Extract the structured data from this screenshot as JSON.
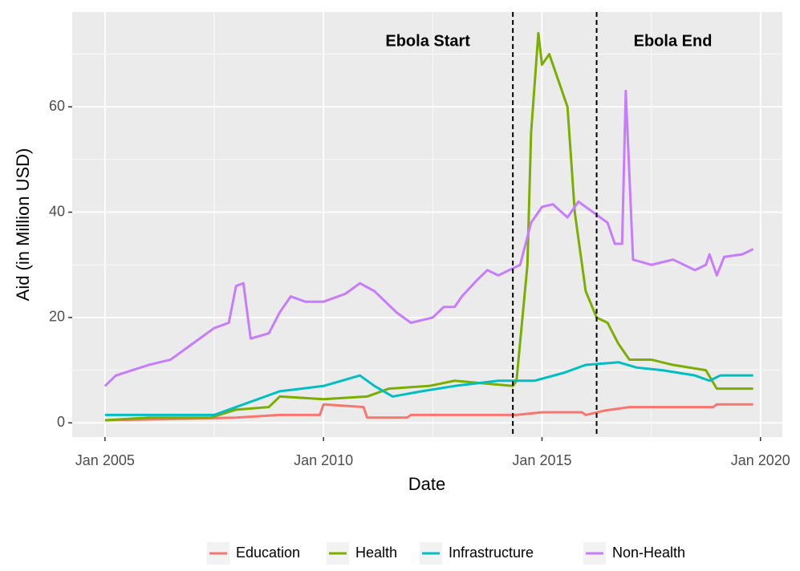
{
  "chart_data": {
    "type": "line",
    "x_label": "Date",
    "y_label": "Aid (in Million USD)",
    "xlim": [
      "2004-04",
      "2020-07"
    ],
    "xticks": [
      {
        "value": "2005-01",
        "label": "Jan 2005"
      },
      {
        "value": "2010-01",
        "label": "Jan 2010"
      },
      {
        "value": "2015-01",
        "label": "Jan 2015"
      },
      {
        "value": "2020-01",
        "label": "Jan 2020"
      }
    ],
    "ylim": [
      -2.7,
      78
    ],
    "yticks": [
      0,
      20,
      40,
      60
    ],
    "grid": true,
    "legend": "bottom",
    "annotations": [
      {
        "x": "2014-05",
        "label": "Ebola Start"
      },
      {
        "x": "2016-04",
        "label": "Ebola End"
      }
    ],
    "series": [
      {
        "name": "Education",
        "color": "#F8766D",
        "x": [
          "2005-01",
          "2007-01",
          "2008-01",
          "2009-01",
          "2009-12",
          "2010-01",
          "2010-12",
          "2011-01",
          "2011-12",
          "2012-01",
          "2014-06",
          "2015-01",
          "2015-12",
          "2016-01",
          "2016-06",
          "2017-01",
          "2018-12",
          "2019-01",
          "2019-11"
        ],
        "values": [
          0.5,
          0.8,
          1,
          1.5,
          1.5,
          3.5,
          3,
          1,
          1,
          1.5,
          1.5,
          2,
          2,
          1.5,
          2.3,
          3,
          3,
          3.5,
          3.5
        ]
      },
      {
        "name": "Health",
        "color": "#7CAE00",
        "x": [
          "2005-01",
          "2006-01",
          "2007-06",
          "2008-01",
          "2008-10",
          "2009-01",
          "2010-01",
          "2011-01",
          "2011-07",
          "2012-06",
          "2013-01",
          "2014-05",
          "2014-06",
          "2014-09",
          "2014-10",
          "2014-12",
          "2015-01",
          "2015-03",
          "2015-08",
          "2015-10",
          "2016-01",
          "2016-04",
          "2016-07",
          "2016-10",
          "2017-01",
          "2017-07",
          "2018-01",
          "2018-10",
          "2019-01",
          "2019-11"
        ],
        "values": [
          0.5,
          1,
          1,
          2.5,
          3,
          5,
          4.5,
          5,
          6.5,
          7,
          8,
          7,
          8,
          30,
          55,
          74,
          68,
          70,
          60,
          40,
          25,
          20,
          19,
          15,
          12,
          12,
          11,
          10,
          6.5,
          6.5
        ]
      },
      {
        "name": "Infrastructure",
        "color": "#00BFC4",
        "x": [
          "2005-01",
          "2007-07",
          "2008-01",
          "2009-01",
          "2010-01",
          "2010-11",
          "2011-03",
          "2011-08",
          "2012-04",
          "2013-01",
          "2014-01",
          "2014-11",
          "2015-07",
          "2016-01",
          "2016-10",
          "2017-03",
          "2017-10",
          "2018-07",
          "2018-11",
          "2019-02",
          "2019-11"
        ],
        "values": [
          1.5,
          1.5,
          3,
          6,
          7,
          9,
          7,
          5,
          6,
          7,
          8,
          8,
          9.5,
          11,
          11.5,
          10.5,
          10,
          9,
          8,
          9,
          9
        ]
      },
      {
        "name": "Non-Health",
        "color": "#C77CFF",
        "x": [
          "2005-01",
          "2005-04",
          "2006-01",
          "2006-07",
          "2007-01",
          "2007-07",
          "2007-11",
          "2008-01",
          "2008-03",
          "2008-05",
          "2008-10",
          "2009-01",
          "2009-04",
          "2009-08",
          "2010-01",
          "2010-07",
          "2010-11",
          "2011-03",
          "2011-09",
          "2012-01",
          "2012-07",
          "2012-10",
          "2013-01",
          "2013-03",
          "2013-07",
          "2013-10",
          "2014-01",
          "2014-07",
          "2014-10",
          "2015-01",
          "2015-04",
          "2015-08",
          "2015-11",
          "2016-03",
          "2016-07",
          "2016-09",
          "2016-11",
          "2016-12",
          "2017-02",
          "2017-07",
          "2018-01",
          "2018-07",
          "2018-10",
          "2018-11",
          "2019-01",
          "2019-03",
          "2019-08",
          "2019-11"
        ],
        "values": [
          7,
          9,
          11,
          12,
          15,
          18,
          19,
          26,
          26.5,
          16,
          17,
          21,
          24,
          23,
          23,
          24.5,
          26.5,
          25,
          21,
          19,
          20,
          22,
          22,
          24,
          27,
          29,
          28,
          30,
          38,
          41,
          41.5,
          39,
          42,
          40,
          38,
          34,
          34,
          63,
          31,
          30,
          31,
          29,
          30,
          32,
          28,
          31.5,
          32,
          33
        ]
      }
    ]
  }
}
